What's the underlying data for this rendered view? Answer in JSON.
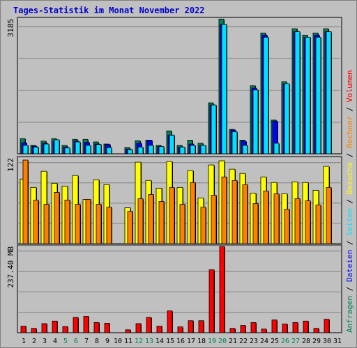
{
  "title": "Tages-Statistik im Monat November 2022",
  "right_legend": [
    {
      "text": "Anfragen",
      "color": "#00805c"
    },
    {
      "text": " / ",
      "color": "#000000"
    },
    {
      "text": "Dateien",
      "color": "#0000ff"
    },
    {
      "text": " / ",
      "color": "#000000"
    },
    {
      "text": "Seiten",
      "color": "#00e0ff"
    },
    {
      "text": " / ",
      "color": "#000000"
    },
    {
      "text": "Besuche",
      "color": "#ffff00"
    },
    {
      "text": " / ",
      "color": "#000000"
    },
    {
      "text": "Rechner",
      "color": "#ff8000"
    },
    {
      "text": " / ",
      "color": "#000000"
    },
    {
      "text": "Volumen",
      "color": "#ff0000"
    }
  ],
  "x_labels": [
    "1",
    "2",
    "3",
    "4",
    "5",
    "6",
    "7",
    "8",
    "9",
    "10",
    "11",
    "12",
    "13",
    "14",
    "15",
    "16",
    "17",
    "18",
    "19",
    "20",
    "21",
    "22",
    "23",
    "24",
    "25",
    "26",
    "27",
    "28",
    "29",
    "30",
    "31"
  ],
  "weekend_days": [
    5,
    6,
    12,
    13,
    19,
    20,
    26,
    27
  ],
  "colors": {
    "anfragen": "#00805c",
    "dateien": "#0000ff",
    "seiten": "#00e0ff",
    "besuche": "#ffff00",
    "rechner": "#ff8000",
    "volumen": "#ff0000",
    "weekday_label": "#000000",
    "weekend_label": "#00805c",
    "panel_bg": "#c0c0c0",
    "grid": "#808080"
  },
  "chart_data": [
    {
      "type": "bar",
      "panel": "top",
      "ymax_label": "3185",
      "ylim": [
        0,
        3185
      ],
      "series": [
        {
          "name": "Anfragen",
          "values": [
            360,
            200,
            300,
            360,
            200,
            340,
            340,
            280,
            230,
            null,
            150,
            310,
            320,
            200,
            540,
            200,
            320,
            250,
            1200,
            3180,
            580,
            320,
            1610,
            2850,
            800,
            1700,
            2950,
            2800,
            2850,
            2950,
            null
          ]
        },
        {
          "name": "Dateien",
          "values": [
            260,
            180,
            250,
            300,
            160,
            300,
            270,
            230,
            220,
            null,
            110,
            250,
            320,
            170,
            440,
            160,
            230,
            200,
            1150,
            3050,
            560,
            300,
            1550,
            2800,
            770,
            1650,
            2880,
            2750,
            2800,
            2880,
            null
          ]
        },
        {
          "name": "Seiten",
          "values": [
            200,
            160,
            230,
            330,
            140,
            280,
            200,
            220,
            150,
            null,
            100,
            160,
            200,
            170,
            440,
            160,
            200,
            200,
            1150,
            3050,
            520,
            200,
            1510,
            2750,
            250,
            1650,
            2880,
            2750,
            2750,
            2880,
            null
          ]
        }
      ]
    },
    {
      "type": "bar",
      "panel": "middle",
      "ymax_label": "122",
      "ylim": [
        0,
        122
      ],
      "series": [
        {
          "name": "Besuche",
          "values": [
            92,
            80,
            103,
            86,
            82,
            97,
            63,
            91,
            84,
            null,
            51,
            116,
            90,
            79,
            117,
            80,
            104,
            65,
            112,
            118,
            106,
            100,
            72,
            95,
            87,
            71,
            88,
            87,
            76,
            110,
            null
          ]
        },
        {
          "name": "Rechner",
          "values": [
            119,
            62,
            56,
            73,
            62,
            56,
            63,
            56,
            52,
            null,
            46,
            64,
            70,
            60,
            80,
            56,
            87,
            52,
            69,
            95,
            90,
            84,
            57,
            75,
            71,
            49,
            64,
            61,
            55,
            80,
            null
          ]
        }
      ]
    },
    {
      "type": "bar",
      "panel": "bottom",
      "ymax_label": "237.40 MB",
      "ylim": [
        0,
        237.4
      ],
      "series": [
        {
          "name": "Volumen",
          "values": [
            18,
            12,
            25,
            32,
            17,
            42,
            45,
            28,
            26,
            null,
            8,
            25,
            42,
            18,
            60,
            16,
            33,
            33,
            173,
            237,
            12,
            20,
            28,
            10,
            35,
            24,
            28,
            32,
            12,
            37,
            null
          ]
        }
      ]
    }
  ]
}
